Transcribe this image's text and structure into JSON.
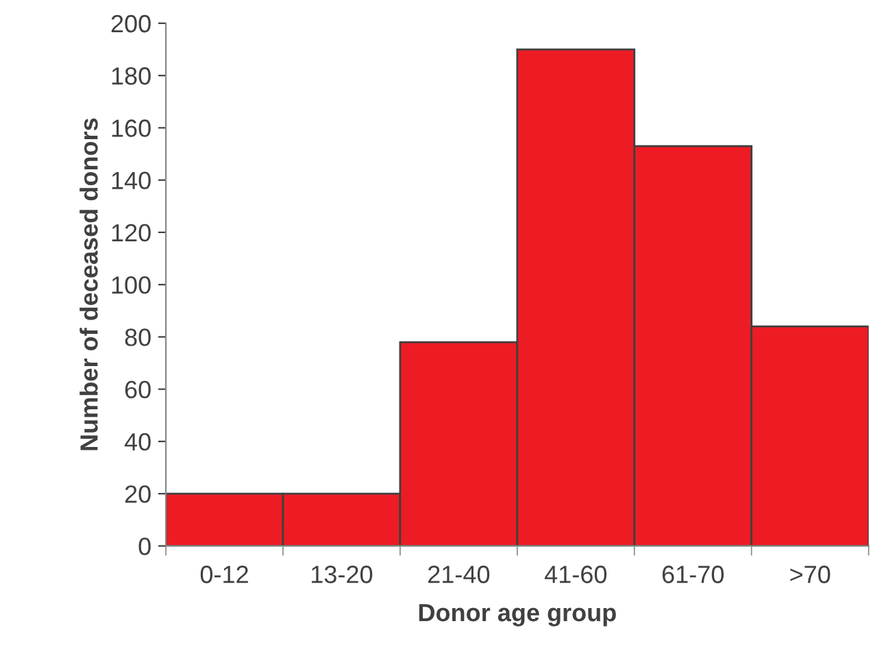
{
  "chart_data": {
    "type": "bar",
    "xlabel": "Donor age group",
    "ylabel": "Number of deceased donors",
    "categories": [
      "0-12",
      "13-20",
      "21-40",
      "41-60",
      "61-70",
      ">70"
    ],
    "values": [
      20,
      20,
      78,
      190,
      153,
      84
    ],
    "color": "#ed1c24",
    "ylim": [
      0,
      200
    ],
    "yticks": [
      0,
      20,
      40,
      60,
      80,
      100,
      120,
      140,
      160,
      180,
      200
    ],
    "grid": false
  }
}
